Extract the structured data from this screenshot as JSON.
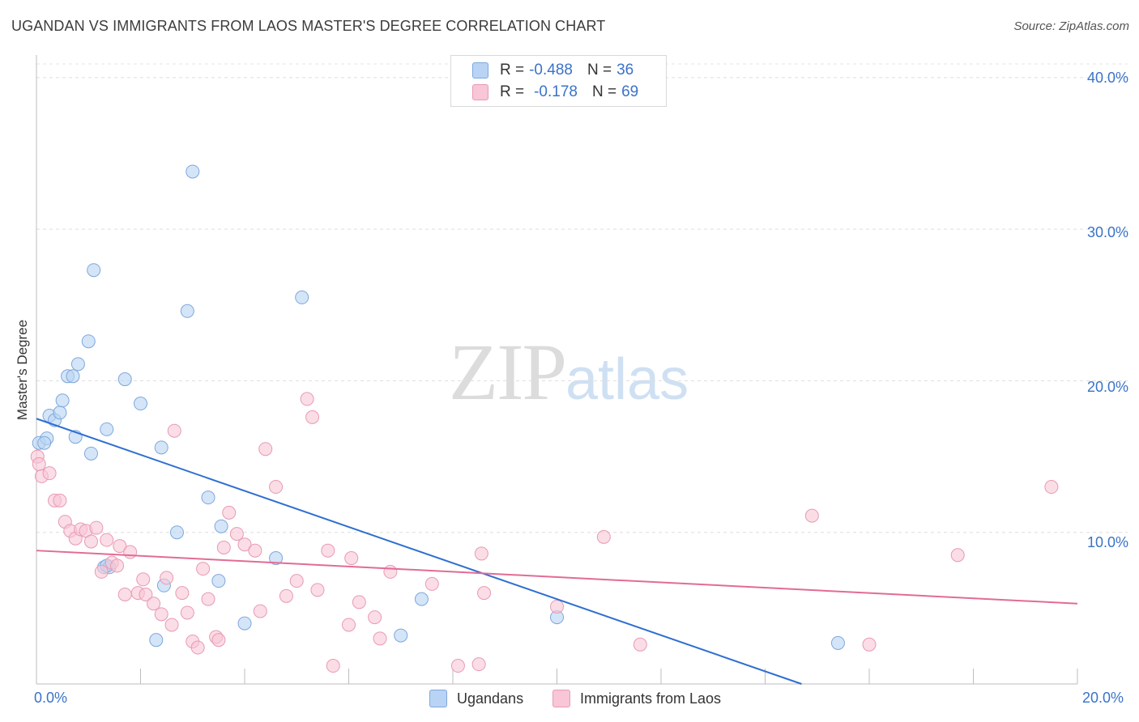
{
  "header": {
    "title": "UGANDAN VS IMMIGRANTS FROM LAOS MASTER'S DEGREE CORRELATION CHART",
    "source": "Source: ZipAtlas.com"
  },
  "watermark": {
    "zip": "ZIP",
    "atlas": "atlas"
  },
  "legend": {
    "rows": [
      {
        "r_label": "R =",
        "r_value": "-0.488",
        "n_label": "N =",
        "n_value": "36",
        "color": "#b8d3f4"
      },
      {
        "r_label": "R =",
        "r_value": "-0.178",
        "n_label": "N =",
        "n_value": "69",
        "color": "#f8c6d6"
      }
    ]
  },
  "axes": {
    "ylabel": "Master's Degree",
    "y_ticks": [
      "40.0%",
      "30.0%",
      "20.0%",
      "10.0%"
    ],
    "x_ticks": [
      "0.0%",
      "20.0%"
    ]
  },
  "chart_data": {
    "type": "scatter",
    "title": "UGANDAN VS IMMIGRANTS FROM LAOS MASTER'S DEGREE CORRELATION CHART",
    "xlabel": "",
    "ylabel": "Master's Degree",
    "xlim": [
      0,
      20
    ],
    "ylim": [
      0,
      40.9
    ],
    "grid": true,
    "legend_position": "top-center",
    "series": [
      {
        "name": "Ugandans",
        "color": "#b8d3f4",
        "stroke": "#7fa7dc",
        "trend": {
          "color": "#2e6fd1",
          "x": [
            0,
            14.7
          ],
          "y": [
            17.5,
            0
          ]
        },
        "points": [
          [
            0.05,
            15.9
          ],
          [
            0.2,
            16.2
          ],
          [
            0.15,
            15.9
          ],
          [
            0.25,
            17.7
          ],
          [
            0.35,
            17.4
          ],
          [
            0.45,
            17.9
          ],
          [
            0.5,
            18.7
          ],
          [
            0.6,
            20.3
          ],
          [
            0.7,
            20.3
          ],
          [
            0.75,
            16.3
          ],
          [
            0.8,
            21.1
          ],
          [
            1.0,
            22.6
          ],
          [
            1.05,
            15.2
          ],
          [
            1.1,
            27.3
          ],
          [
            1.3,
            7.7
          ],
          [
            1.4,
            7.7
          ],
          [
            1.35,
            7.8
          ],
          [
            1.35,
            16.8
          ],
          [
            1.7,
            20.1
          ],
          [
            2.0,
            18.5
          ],
          [
            2.4,
            15.6
          ],
          [
            2.45,
            6.5
          ],
          [
            2.3,
            2.9
          ],
          [
            2.7,
            10.0
          ],
          [
            2.9,
            24.6
          ],
          [
            3.0,
            33.8
          ],
          [
            3.3,
            12.3
          ],
          [
            3.5,
            6.8
          ],
          [
            3.55,
            10.4
          ],
          [
            4.0,
            4.0
          ],
          [
            4.6,
            8.3
          ],
          [
            5.1,
            25.5
          ],
          [
            7.0,
            3.2
          ],
          [
            7.4,
            5.6
          ],
          [
            10.0,
            4.4
          ],
          [
            15.4,
            2.7
          ]
        ]
      },
      {
        "name": "Immigrants from Laos",
        "color": "#f8c6d6",
        "stroke": "#e89ab4",
        "trend": {
          "color": "#e26b96",
          "x": [
            0,
            20
          ],
          "y": [
            8.8,
            5.3
          ]
        },
        "points": [
          [
            0.02,
            15.0
          ],
          [
            0.05,
            14.5
          ],
          [
            0.1,
            13.7
          ],
          [
            0.25,
            13.9
          ],
          [
            0.35,
            12.1
          ],
          [
            0.45,
            12.1
          ],
          [
            0.55,
            10.7
          ],
          [
            0.65,
            10.1
          ],
          [
            0.75,
            9.6
          ],
          [
            0.85,
            10.2
          ],
          [
            0.95,
            10.1
          ],
          [
            1.05,
            9.4
          ],
          [
            1.15,
            10.3
          ],
          [
            1.25,
            7.4
          ],
          [
            1.35,
            9.5
          ],
          [
            1.45,
            8.0
          ],
          [
            1.55,
            7.8
          ],
          [
            1.6,
            9.1
          ],
          [
            1.7,
            5.9
          ],
          [
            1.8,
            8.7
          ],
          [
            1.95,
            6.0
          ],
          [
            2.05,
            6.9
          ],
          [
            2.1,
            5.9
          ],
          [
            2.25,
            5.3
          ],
          [
            2.4,
            4.6
          ],
          [
            2.5,
            7.0
          ],
          [
            2.6,
            3.9
          ],
          [
            2.65,
            16.7
          ],
          [
            2.8,
            6.0
          ],
          [
            2.9,
            4.7
          ],
          [
            3.0,
            2.8
          ],
          [
            3.1,
            2.4
          ],
          [
            3.2,
            7.6
          ],
          [
            3.3,
            5.6
          ],
          [
            3.45,
            3.1
          ],
          [
            3.5,
            2.9
          ],
          [
            3.6,
            9.0
          ],
          [
            3.7,
            11.3
          ],
          [
            3.85,
            9.9
          ],
          [
            4.0,
            9.2
          ],
          [
            4.2,
            8.8
          ],
          [
            4.3,
            4.8
          ],
          [
            4.4,
            15.5
          ],
          [
            4.6,
            13.0
          ],
          [
            4.8,
            5.8
          ],
          [
            5.0,
            6.8
          ],
          [
            5.2,
            18.8
          ],
          [
            5.3,
            17.6
          ],
          [
            5.4,
            6.2
          ],
          [
            5.6,
            8.8
          ],
          [
            5.7,
            1.2
          ],
          [
            6.0,
            3.9
          ],
          [
            6.2,
            5.4
          ],
          [
            6.05,
            8.3
          ],
          [
            6.5,
            4.4
          ],
          [
            6.6,
            3.0
          ],
          [
            6.8,
            7.4
          ],
          [
            7.6,
            6.6
          ],
          [
            8.1,
            1.2
          ],
          [
            8.5,
            1.3
          ],
          [
            8.6,
            6.0
          ],
          [
            8.55,
            8.6
          ],
          [
            10.0,
            5.1
          ],
          [
            10.9,
            9.7
          ],
          [
            11.6,
            2.6
          ],
          [
            14.9,
            11.1
          ],
          [
            16.0,
            2.6
          ],
          [
            17.7,
            8.5
          ],
          [
            19.5,
            13.0
          ]
        ]
      }
    ]
  }
}
